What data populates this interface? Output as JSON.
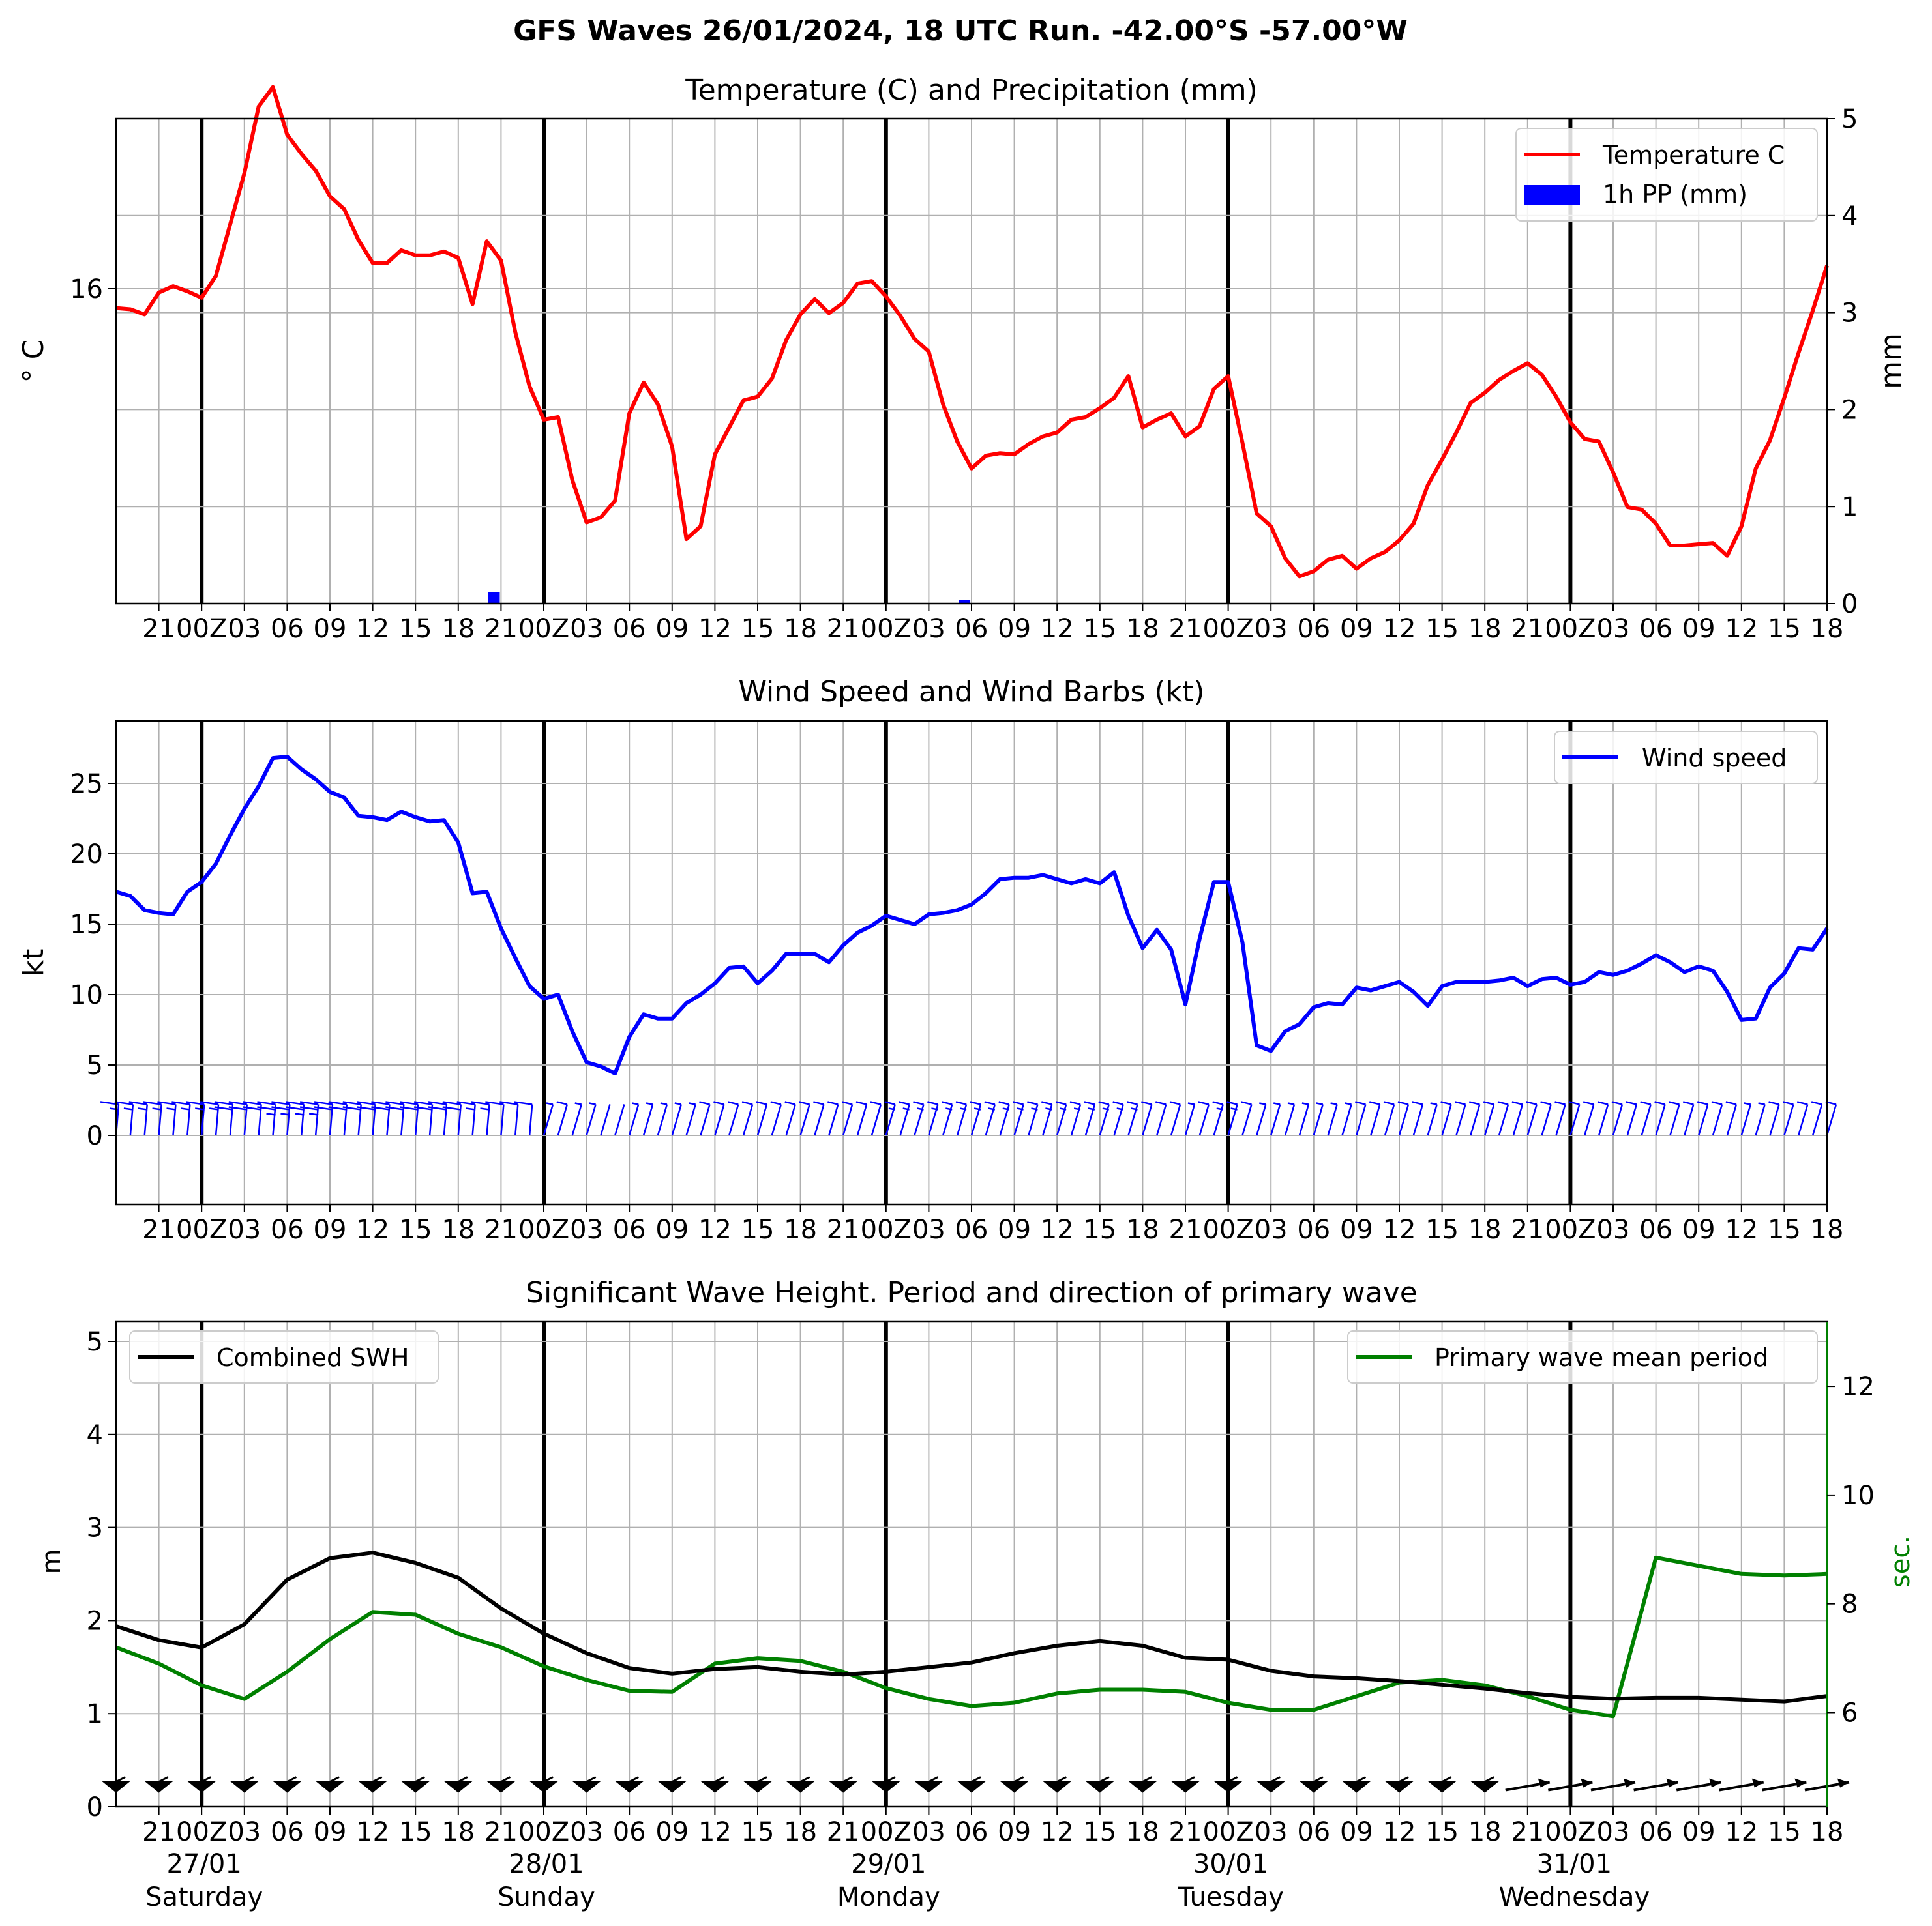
{
  "suptitle": "GFS Waves 26/01/2024, 18 UTC Run. -42.00°S -57.00°W",
  "colors": {
    "temperature": "#ff0000",
    "precipitation": "#0000ff",
    "wind": "#0000ff",
    "swh": "#000000",
    "period": "#008000",
    "grid": "#b0b0b0",
    "day_line": "#000000"
  },
  "time_axis": {
    "hours_labels": [
      "21",
      "00Z",
      "03",
      "06",
      "09",
      "12",
      "15",
      "18",
      "21",
      "00Z",
      "03",
      "06",
      "09",
      "12",
      "15",
      "18",
      "21",
      "00Z",
      "03",
      "06",
      "09",
      "12",
      "15",
      "18",
      "21",
      "00Z",
      "03",
      "06",
      "09",
      "12",
      "15",
      "18",
      "21",
      "00Z",
      "03",
      "06",
      "09",
      "12",
      "15",
      "18"
    ],
    "day_labels": [
      {
        "date": "27/01",
        "weekday": "Saturday"
      },
      {
        "date": "28/01",
        "weekday": "Sunday"
      },
      {
        "date": "29/01",
        "weekday": "Monday"
      },
      {
        "date": "30/01",
        "weekday": "Tuesday"
      },
      {
        "date": "31/01",
        "weekday": "Wednesday"
      }
    ]
  },
  "chart_data": [
    {
      "type": "line",
      "title": "Temperature (C) and Precipitation (mm)",
      "x_unit": "hours from 26/01 18Z",
      "xlim": [
        0,
        120
      ],
      "ylabel": "° C",
      "yticks": [
        "16"
      ],
      "ylabel_right": "mm",
      "yticks_right": [
        "0",
        "1",
        "2",
        "3",
        "4",
        "5"
      ],
      "y_right_lim": [
        0,
        5
      ],
      "legend": [
        "Temperature C",
        "1h PP (mm)"
      ],
      "legend_position": "upper right",
      "grid": true,
      "series": [
        {
          "name": "Temperature C",
          "x": [
            0,
            1,
            2,
            3,
            4,
            5,
            6,
            7,
            8,
            9,
            10,
            11,
            12,
            13,
            14,
            15,
            16,
            17,
            18,
            19,
            20,
            21,
            22,
            23,
            24,
            25,
            26,
            27,
            28,
            29,
            30,
            31,
            32,
            33,
            34,
            35,
            36,
            37,
            38,
            39,
            40,
            41,
            42,
            43,
            44,
            45,
            46,
            47,
            48,
            49,
            50,
            51,
            52,
            53,
            54,
            55,
            56,
            57,
            58,
            59,
            60,
            61,
            62,
            63,
            64,
            65,
            66,
            67,
            68,
            69,
            70,
            71,
            72,
            73,
            74,
            75,
            76,
            77,
            78,
            79,
            80,
            81,
            82,
            83,
            84,
            85,
            86,
            87,
            88,
            89,
            90,
            91,
            92,
            93,
            94,
            95,
            96,
            97,
            98,
            99,
            100,
            101,
            102,
            103,
            104,
            105,
            106,
            107,
            108,
            109,
            110,
            111,
            112,
            113,
            114,
            115,
            116,
            117,
            118,
            119,
            120
          ],
          "values": [
            15.85,
            15.84,
            15.8,
            15.97,
            16.02,
            15.98,
            15.93,
            16.1,
            16.5,
            16.9,
            17.42,
            17.57,
            17.2,
            17.05,
            16.92,
            16.72,
            16.62,
            16.38,
            16.2,
            16.2,
            16.3,
            16.26,
            16.26,
            16.29,
            16.24,
            15.88,
            16.37,
            16.22,
            15.66,
            15.24,
            14.98,
            15.0,
            14.51,
            14.18,
            14.22,
            14.35,
            15.03,
            15.27,
            15.1,
            14.77,
            14.05,
            14.15,
            14.71,
            14.92,
            15.13,
            15.16,
            15.3,
            15.6,
            15.8,
            15.92,
            15.81,
            15.89,
            16.04,
            16.06,
            15.94,
            15.79,
            15.61,
            15.51,
            15.1,
            14.81,
            14.6,
            14.7,
            14.72,
            14.71,
            14.79,
            14.85,
            14.88,
            14.98,
            15.0,
            15.07,
            15.15,
            15.32,
            14.92,
            14.98,
            15.03,
            14.85,
            14.93,
            15.22,
            15.32,
            14.8,
            14.25,
            14.15,
            13.9,
            13.76,
            13.8,
            13.89,
            13.92,
            13.82,
            13.9,
            13.95,
            14.04,
            14.17,
            14.47,
            14.67,
            14.88,
            15.11,
            15.19,
            15.29,
            15.36,
            15.42,
            15.33,
            15.16,
            14.96,
            14.83,
            14.81,
            14.57,
            14.3,
            14.28,
            14.17,
            14.0,
            14.0,
            14.01,
            14.02,
            13.92,
            14.15,
            14.6,
            14.82,
            15.15,
            15.5,
            15.83,
            16.18
          ]
        },
        {
          "name": "1h PP (mm)",
          "type": "bar",
          "x": [
            26.5,
            59.5
          ],
          "values": [
            0.12,
            0.04
          ]
        }
      ]
    },
    {
      "type": "line",
      "title": "Wind Speed and Wind Barbs (kt)",
      "xlim": [
        0,
        120
      ],
      "ylim": [
        -5,
        29.5
      ],
      "ylabel": "kt",
      "yticks": [
        "0",
        "5",
        "10",
        "15",
        "20",
        "25"
      ],
      "legend": [
        "Wind speed"
      ],
      "legend_position": "upper right",
      "grid": true,
      "barb_rows_y": [
        2.2
      ],
      "series": [
        {
          "name": "Wind speed",
          "x": [
            0,
            1,
            2,
            3,
            4,
            5,
            6,
            7,
            8,
            9,
            10,
            11,
            12,
            13,
            14,
            15,
            16,
            17,
            18,
            19,
            20,
            21,
            22,
            23,
            24,
            25,
            26,
            27,
            28,
            29,
            30,
            31,
            32,
            33,
            34,
            35,
            36,
            37,
            38,
            39,
            40,
            41,
            42,
            43,
            44,
            45,
            46,
            47,
            48,
            49,
            50,
            51,
            52,
            53,
            54,
            55,
            56,
            57,
            58,
            59,
            60,
            61,
            62,
            63,
            64,
            65,
            66,
            67,
            68,
            69,
            70,
            71,
            72,
            73,
            74,
            75,
            76,
            77,
            78,
            79,
            80,
            81,
            82,
            83,
            84,
            85,
            86,
            87,
            88,
            89,
            90,
            91,
            92,
            93,
            94,
            95,
            96,
            97,
            98,
            99,
            100,
            101,
            102,
            103,
            104,
            105,
            106,
            107,
            108,
            109,
            110,
            111,
            112,
            113,
            114,
            115,
            116,
            117,
            118,
            119,
            120
          ],
          "values": [
            17.3,
            17.0,
            16.0,
            15.8,
            15.7,
            17.3,
            18.0,
            19.3,
            21.3,
            23.2,
            24.8,
            26.8,
            26.9,
            26.0,
            25.3,
            24.4,
            24.0,
            22.7,
            22.6,
            22.4,
            23.0,
            22.6,
            22.3,
            22.4,
            20.8,
            17.2,
            17.3,
            14.7,
            12.6,
            10.6,
            9.7,
            10.0,
            7.4,
            5.2,
            4.9,
            4.4,
            7.0,
            8.6,
            8.3,
            8.3,
            9.4,
            10.0,
            10.8,
            11.9,
            12.0,
            10.8,
            11.7,
            12.9,
            12.9,
            12.9,
            12.3,
            13.5,
            14.4,
            14.9,
            15.6,
            15.3,
            15.0,
            15.7,
            15.8,
            16.0,
            16.4,
            17.2,
            18.2,
            18.3,
            18.3,
            18.5,
            18.2,
            17.9,
            18.2,
            17.9,
            18.7,
            15.6,
            13.3,
            14.6,
            13.2,
            9.3,
            14.0,
            18.0,
            18.0,
            13.7,
            6.4,
            6.0,
            7.4,
            7.9,
            9.1,
            9.4,
            9.3,
            10.5,
            10.3,
            10.6,
            10.9,
            10.2,
            9.2,
            10.6,
            10.9,
            10.9,
            10.9,
            11.0,
            11.2,
            10.6,
            11.1,
            11.2,
            10.7,
            10.9,
            11.6,
            11.4,
            11.7,
            12.2,
            12.8,
            12.3,
            11.6,
            12.0,
            11.7,
            10.2,
            8.2,
            8.3,
            10.5,
            11.5,
            13.3,
            13.2,
            14.7
          ]
        }
      ],
      "barbs": {
        "x": [
          0,
          1,
          2,
          3,
          4,
          5,
          6,
          7,
          8,
          9,
          10,
          11,
          12,
          13,
          14,
          15,
          16,
          17,
          18,
          19,
          20,
          21,
          22,
          23,
          24,
          25,
          26,
          27,
          28,
          29,
          30,
          31,
          32,
          33,
          34,
          35,
          36,
          37,
          38,
          39,
          40,
          41,
          42,
          43,
          44,
          45,
          46,
          47,
          48,
          49,
          50,
          51,
          52,
          53,
          54,
          55,
          56,
          57,
          58,
          59,
          60,
          61,
          62,
          63,
          64,
          65,
          66,
          67,
          68,
          69,
          70,
          71,
          72,
          73,
          74,
          75,
          76,
          77,
          78,
          79,
          80,
          81,
          82,
          83,
          84,
          85,
          86,
          87,
          88,
          89,
          90,
          91,
          92,
          93,
          94,
          95,
          96,
          97,
          98,
          99,
          100,
          101,
          102,
          103,
          104,
          105,
          106,
          107,
          108,
          109,
          110,
          111,
          112,
          113,
          114,
          115,
          116,
          117,
          118,
          119,
          120
        ]
      }
    },
    {
      "type": "line",
      "title": "Significant Wave Height. Period and direction of primary wave",
      "x": [
        0,
        3,
        6,
        9,
        12,
        15,
        18,
        21,
        24,
        27,
        30,
        33,
        36,
        39,
        42,
        45,
        48,
        51,
        54,
        57,
        60,
        63,
        66,
        69,
        72,
        75,
        78,
        81,
        84,
        87,
        90,
        93,
        96,
        99,
        102,
        105,
        108,
        111,
        114,
        117,
        120
      ],
      "xlim": [
        0,
        120
      ],
      "ylim": [
        0,
        5.2
      ],
      "ylabel": "m",
      "yticks": [
        "0",
        "1",
        "2",
        "3",
        "4",
        "5"
      ],
      "ylabel_right": "sec.",
      "yticks_right": [
        "6",
        "8",
        "10",
        "12"
      ],
      "y_right_lim": [
        4.45,
        13.3
      ],
      "legend_left": [
        "Combined SWH"
      ],
      "legend_right": [
        "Primary wave mean period"
      ],
      "grid": true,
      "series": [
        {
          "name": "Combined SWH",
          "axis": "left",
          "values": [
            1.94,
            1.79,
            1.71,
            1.96,
            2.44,
            2.67,
            2.73,
            2.62,
            2.46,
            2.13,
            1.86,
            1.65,
            1.49,
            1.43,
            1.48,
            1.5,
            1.45,
            1.42,
            1.45,
            1.5,
            1.55,
            1.65,
            1.73,
            1.78,
            1.73,
            1.6,
            1.58,
            1.46,
            1.4,
            1.38,
            1.35,
            1.31,
            1.27,
            1.22,
            1.18,
            1.16,
            1.17,
            1.17,
            1.15,
            1.13,
            1.19
          ]
        },
        {
          "name": "Primary wave mean period",
          "axis": "right",
          "values": [
            7.2,
            6.9,
            6.5,
            6.25,
            6.75,
            7.35,
            7.85,
            7.8,
            7.45,
            7.2,
            6.85,
            6.6,
            6.4,
            6.38,
            6.9,
            7.0,
            6.95,
            6.75,
            6.45,
            6.25,
            6.12,
            6.18,
            6.35,
            6.42,
            6.42,
            6.38,
            6.18,
            6.05,
            6.05,
            6.3,
            6.55,
            6.6,
            6.5,
            6.3,
            6.05,
            5.93,
            8.85,
            8.7,
            8.55,
            8.52,
            8.55
          ]
        }
      ],
      "direction_arrows": {
        "x": [
          0,
          3,
          6,
          9,
          12,
          15,
          18,
          21,
          24,
          27,
          30,
          33,
          36,
          39,
          42,
          45,
          48,
          51,
          54,
          57,
          60,
          63,
          66,
          69,
          72,
          75,
          78,
          81,
          84,
          87,
          90,
          93,
          96,
          99,
          102,
          105,
          108,
          111,
          114,
          117,
          120
        ],
        "y": 0.22
      }
    }
  ]
}
